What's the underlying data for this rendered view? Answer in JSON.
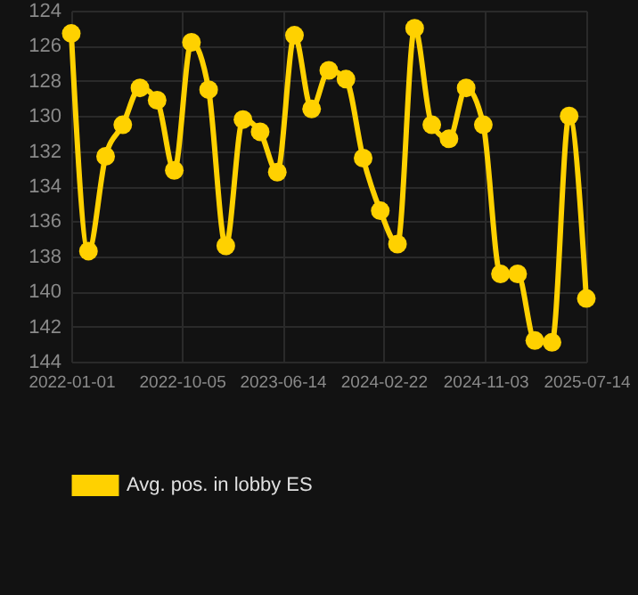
{
  "chart_data": {
    "type": "line",
    "x": [
      "2022-01-01",
      "2022-02-13",
      "2022-03-28",
      "2022-05-10",
      "2022-06-22",
      "2022-08-04",
      "2022-09-16",
      "2022-10-29",
      "2022-12-11",
      "2023-01-23",
      "2023-03-07",
      "2023-04-19",
      "2023-06-01",
      "2023-07-14",
      "2023-08-26",
      "2023-10-08",
      "2023-11-20",
      "2024-01-02",
      "2024-02-14",
      "2024-03-28",
      "2024-05-10",
      "2024-06-22",
      "2024-08-04",
      "2024-09-16",
      "2024-10-29",
      "2024-12-11",
      "2025-01-23",
      "2025-03-07",
      "2025-04-19",
      "2025-06-01",
      "2025-07-14"
    ],
    "series": [
      {
        "name": "Avg. pos. in lobby ES",
        "color": "#ffd100",
        "values": [
          125.3,
          137.7,
          132.3,
          130.5,
          128.4,
          129.1,
          133.1,
          125.8,
          128.5,
          137.4,
          130.2,
          130.9,
          133.2,
          125.4,
          129.6,
          127.4,
          127.9,
          132.4,
          135.4,
          137.3,
          125.0,
          130.5,
          131.3,
          128.4,
          130.5,
          139.0,
          139.0,
          142.8,
          142.9,
          130.0,
          140.4
        ]
      }
    ],
    "xlim": [
      "2022-01-01",
      "2025-07-14"
    ],
    "xticks": [
      "2022-01-01",
      "2022-10-05",
      "2023-06-14",
      "2024-02-22",
      "2024-11-03",
      "2025-07-14"
    ],
    "ylim": [
      144,
      124
    ],
    "yticks": [
      124,
      126,
      128,
      130,
      132,
      134,
      136,
      138,
      140,
      142,
      144
    ],
    "grid": true,
    "legend": "bottom",
    "marker": "circle",
    "line_style": "solid"
  }
}
